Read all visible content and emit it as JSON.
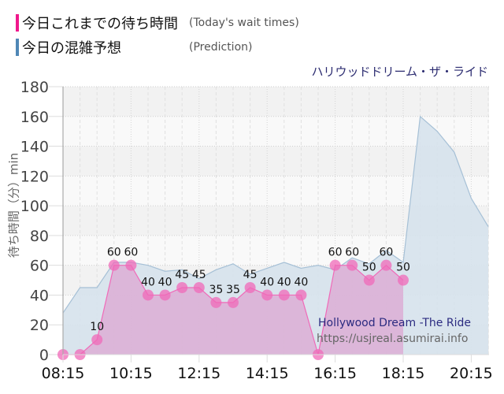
{
  "legend": {
    "items": [
      {
        "label_jp": "今日これまでの待ち時間",
        "label_en": "(Today's wait times)",
        "color": "#f0188c"
      },
      {
        "label_jp": "今日の混雑予想",
        "label_en": "(Prediction)",
        "color": "#4f87b6"
      }
    ]
  },
  "watermark": {
    "title": "Hollywood Dream -The Ride",
    "url": "https://usjreal.asumirai.info"
  },
  "chart_data": {
    "type": "area",
    "title": "ハリウッドドリーム・ザ・ライド",
    "xlabel": "",
    "ylabel": "待ち時間（分）min",
    "ylim": [
      0,
      180
    ],
    "yticks": [
      0,
      20,
      40,
      60,
      80,
      100,
      120,
      140,
      160,
      180
    ],
    "xtick_labels": [
      "08:15",
      "10:15",
      "12:15",
      "14:15",
      "16:15",
      "18:15",
      "20:15"
    ],
    "grid": true,
    "legend_position": "top-left",
    "x": [
      "08:15",
      "08:45",
      "09:15",
      "09:45",
      "10:15",
      "10:45",
      "11:15",
      "11:45",
      "12:15",
      "12:45",
      "13:15",
      "13:45",
      "14:15",
      "14:45",
      "15:15",
      "15:45",
      "16:15",
      "16:45",
      "17:15",
      "17:45",
      "18:15",
      "18:45",
      "19:15",
      "19:45",
      "20:15",
      "20:45"
    ],
    "series": [
      {
        "name": "今日これまでの待ち時間 (Today's wait times)",
        "color": "#f06ab8",
        "fill": "#dcb0d6",
        "values": [
          0,
          0,
          10,
          60,
          60,
          40,
          40,
          45,
          45,
          35,
          35,
          45,
          40,
          40,
          40,
          0,
          60,
          60,
          50,
          60,
          50
        ]
      },
      {
        "name": "今日の混雑予想 (Prediction)",
        "color": "#a6c0d6",
        "fill": "#d6e2ec",
        "values": [
          28,
          45,
          45,
          62,
          62,
          60,
          56,
          57,
          51,
          57,
          61,
          54,
          58,
          62,
          58,
          60,
          57,
          65,
          61,
          70,
          62,
          160,
          150,
          136,
          105,
          86
        ]
      }
    ]
  }
}
